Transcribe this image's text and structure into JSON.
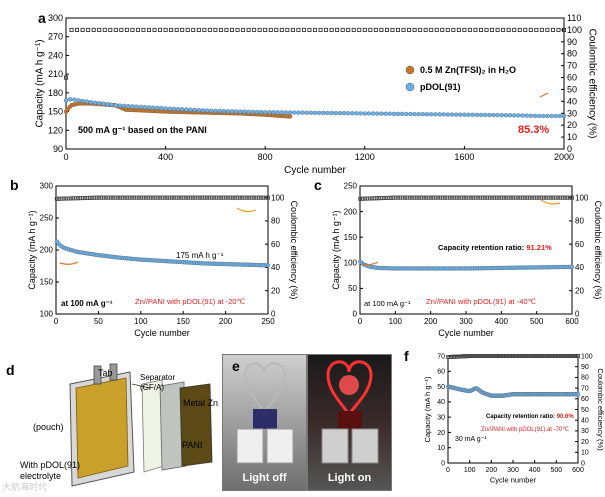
{
  "panels": {
    "a": "a",
    "b": "b",
    "c": "c",
    "d": "d",
    "e": "e",
    "f": "f"
  },
  "chart_data": [
    {
      "id": "a",
      "type": "scatter",
      "xlabel": "Cycle number",
      "ylabel": "Capacity (mA h g⁻¹)",
      "y2label": "Coulombic efficiency (%)",
      "xlim": [
        0,
        2000
      ],
      "ylim": [
        90,
        300
      ],
      "y2lim": [
        0,
        110
      ],
      "xticks": [
        0,
        400,
        800,
        1200,
        1600,
        2000
      ],
      "yticks": [
        90,
        120,
        150,
        180,
        210,
        240,
        270,
        300
      ],
      "y2ticks": [
        0,
        10,
        20,
        30,
        40,
        50,
        60,
        70,
        80,
        90,
        100,
        110
      ],
      "series": [
        {
          "name": "0.5 M Zn(TFSI)₂ in H₂O",
          "color": "#c8772a",
          "x": [
            0,
            20,
            50,
            100,
            200,
            240,
            300,
            400,
            500,
            600,
            700,
            800,
            900
          ],
          "y": [
            150,
            160,
            163,
            163,
            160,
            153,
            152,
            150,
            149,
            148,
            147,
            145,
            142
          ]
        },
        {
          "name": "pDOL(91)",
          "color": "#6ab0e8",
          "x": [
            0,
            20,
            50,
            100,
            200,
            400,
            600,
            800,
            1000,
            1200,
            1400,
            1600,
            1800,
            1900,
            2000
          ],
          "y": [
            168,
            170,
            168,
            165,
            160,
            155,
            151,
            149,
            148,
            147,
            146,
            145,
            144,
            143,
            143
          ]
        },
        {
          "name": "CE",
          "axis": "y2",
          "color": "#222222",
          "x": [
            0,
            5,
            10,
            20,
            50,
            100,
            500,
            1000,
            1500,
            2000
          ],
          "y": [
            60,
            97,
            99.5,
            100,
            100,
            100,
            100,
            100,
            100,
            100
          ]
        }
      ],
      "annotations": [
        "500 mA g⁻¹ based on the PANI",
        "85.3%"
      ]
    },
    {
      "id": "b",
      "type": "scatter",
      "xlabel": "Cycle number",
      "ylabel": "Capacity (mA h g⁻¹)",
      "y2label": "Coulombic efficiency (%)",
      "xlim": [
        0,
        250
      ],
      "ylim": [
        100,
        300
      ],
      "y2lim": [
        0,
        110
      ],
      "xticks": [
        0,
        50,
        100,
        150,
        200,
        250
      ],
      "yticks": [
        100,
        150,
        200,
        250,
        300
      ],
      "y2ticks": [
        0,
        20,
        40,
        60,
        80,
        100
      ],
      "series": [
        {
          "name": "capacity",
          "color": "#6ab0e8",
          "x": [
            1,
            5,
            10,
            25,
            50,
            75,
            100,
            125,
            150,
            175,
            200,
            225,
            250
          ],
          "y": [
            213,
            207,
            203,
            197,
            192,
            188,
            185,
            183,
            181,
            179,
            178,
            177,
            176
          ]
        },
        {
          "name": "CE",
          "axis": "y2",
          "color": "#444444",
          "x": [
            1,
            50,
            100,
            150,
            200,
            250
          ],
          "y": [
            99,
            100,
            100,
            100,
            100,
            100
          ]
        }
      ],
      "annotations": [
        "175 mA h g⁻¹",
        "at 100 mA g⁻¹",
        "Zn//PANI with pDOL(91)  at -20℃"
      ]
    },
    {
      "id": "c",
      "type": "scatter",
      "xlabel": "Cycle number",
      "ylabel": "Capacity (mA h g⁻¹)",
      "y2label": "Coulombic efficiency (%)",
      "xlim": [
        0,
        600
      ],
      "ylim": [
        0,
        250
      ],
      "y2lim": [
        0,
        110
      ],
      "xticks": [
        0,
        100,
        200,
        300,
        400,
        500,
        600
      ],
      "yticks": [
        0,
        50,
        100,
        150,
        200,
        250
      ],
      "y2ticks": [
        0,
        20,
        40,
        60,
        80,
        100
      ],
      "series": [
        {
          "name": "capacity",
          "color": "#6ab0e8",
          "x": [
            1,
            10,
            25,
            50,
            100,
            200,
            300,
            400,
            500,
            600
          ],
          "y": [
            102,
            97,
            93,
            90,
            89,
            89,
            89,
            90,
            91,
            92
          ]
        },
        {
          "name": "CE",
          "axis": "y2",
          "color": "#444444",
          "x": [
            1,
            100,
            200,
            300,
            400,
            500,
            600
          ],
          "y": [
            99,
            100,
            100,
            100,
            100,
            100,
            100
          ]
        }
      ],
      "annotations": [
        "Capacity retention ratio: ",
        "91.21%",
        "at 100 mA g⁻¹",
        "Zn//PANI with pDOL(91)  at -40℃"
      ]
    },
    {
      "id": "f",
      "type": "scatter",
      "xlabel": "Cycle number",
      "ylabel": "Capacity (mA h g⁻¹)",
      "y2label": "Coulombic efficiency (%)",
      "xlim": [
        0,
        600
      ],
      "ylim": [
        0,
        70
      ],
      "y2lim": [
        0,
        100
      ],
      "xticks": [
        0,
        100,
        200,
        300,
        400,
        500,
        600
      ],
      "yticks": [
        0,
        10,
        20,
        30,
        40,
        50,
        60,
        70
      ],
      "y2ticks": [
        0,
        10,
        20,
        30,
        40,
        50,
        60,
        70,
        80,
        90,
        100
      ],
      "series": [
        {
          "name": "capacity",
          "color": "#6ab0e8",
          "x": [
            1,
            30,
            60,
            100,
            130,
            160,
            200,
            250,
            300,
            400,
            500,
            600
          ],
          "y": [
            50,
            49,
            48,
            47,
            49,
            46,
            44,
            44,
            45,
            45,
            45,
            45
          ]
        },
        {
          "name": "CE",
          "axis": "y2",
          "color": "#444444",
          "x": [
            1,
            100,
            200,
            300,
            400,
            500,
            600
          ],
          "y": [
            99,
            100,
            100,
            100,
            100,
            100,
            100
          ]
        }
      ],
      "annotations": [
        "Capacity retention ratio: ",
        "90.6%",
        "30 mA g⁻¹",
        "Zn//PANI with pDOL(91)  at -70℃"
      ]
    }
  ],
  "schematic": {
    "tab": "Tab",
    "separator": "Separator\n(GF/A)",
    "metal_zn": "Metal Zn",
    "pouch": "(pouch)",
    "pani": "PANI",
    "electrolyte_1": "With pDOL(91)",
    "electrolyte_2": "electrolyte"
  },
  "photos": {
    "left_caption": "Light off",
    "right_caption": "Light on"
  },
  "watermark": "大航海时代"
}
